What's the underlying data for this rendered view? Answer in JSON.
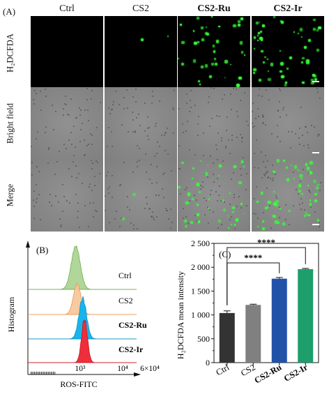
{
  "panel_a": {
    "label": "(A)",
    "columns": [
      "Ctrl",
      "CS2",
      "CS2-Ru",
      "CS2-Ir"
    ],
    "rows": [
      "H₂DCFDA",
      "Bright field",
      "Merge"
    ]
  },
  "chart_data": [
    {
      "type": "area",
      "panel_label": "(B)",
      "xlabel": "ROS-FITC",
      "ylabel": "Histogram",
      "x_scale": "log",
      "x_ticks": [
        "10³",
        "10⁴",
        "6×10⁴"
      ],
      "series": [
        {
          "name": "Ctrl",
          "color": "#a9d18e",
          "peak": 1000
        },
        {
          "name": "CS2",
          "color": "#f7c495",
          "peak": 1100
        },
        {
          "name": "CS2-Ru",
          "color": "#18b4ec",
          "peak": 1600
        },
        {
          "name": "CS2-Ir",
          "color": "#ee2e3a",
          "peak": 1800
        }
      ]
    },
    {
      "type": "bar",
      "panel_label": "(C)",
      "ylabel": "H₂DCFDA mean intensity",
      "categories": [
        "Ctrl",
        "CS2",
        "CS2-Ru",
        "CS2-Ir"
      ],
      "values": [
        1040,
        1210,
        1760,
        1960
      ],
      "errors": [
        45,
        15,
        25,
        15
      ],
      "colors": [
        "#333333",
        "#808080",
        "#2251a8",
        "#1d9e6b"
      ],
      "ylim": [
        0,
        2500
      ],
      "yticks": [
        "0",
        "500",
        "1 000",
        "1 500",
        "2 000",
        "2 500"
      ],
      "significance": [
        {
          "from": "Ctrl",
          "to": "CS2-Ru",
          "label": "****"
        },
        {
          "from": "Ctrl",
          "to": "CS2-Ir",
          "label": "****"
        }
      ]
    }
  ]
}
